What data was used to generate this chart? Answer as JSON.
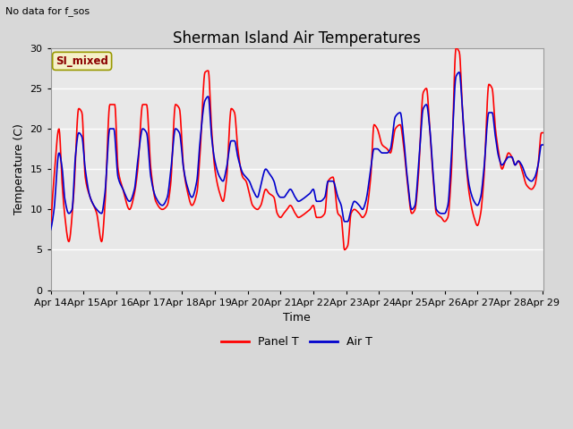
{
  "title": "Sherman Island Air Temperatures",
  "subtitle": "No data for f_sos",
  "xlabel": "Time",
  "ylabel": "Temperature (C)",
  "ylim": [
    0,
    30
  ],
  "yticks": [
    0,
    5,
    10,
    15,
    20,
    25,
    30
  ],
  "xtick_labels": [
    "Apr 14",
    "Apr 15",
    "Apr 16",
    "Apr 17",
    "Apr 18",
    "Apr 19",
    "Apr 20",
    "Apr 21",
    "Apr 22",
    "Apr 23",
    "Apr 24",
    "Apr 25",
    "Apr 26",
    "Apr 27",
    "Apr 28",
    "Apr 29"
  ],
  "annotation_label": "SI_mixed",
  "panel_t_color": "#FF0000",
  "air_t_color": "#0000CD",
  "fig_bg_color": "#D8D8D8",
  "plot_bg_color": "#E8E8E8",
  "grid_color": "#FFFFFF",
  "line_width": 1.2,
  "title_fontsize": 12,
  "label_fontsize": 9,
  "tick_fontsize": 8
}
